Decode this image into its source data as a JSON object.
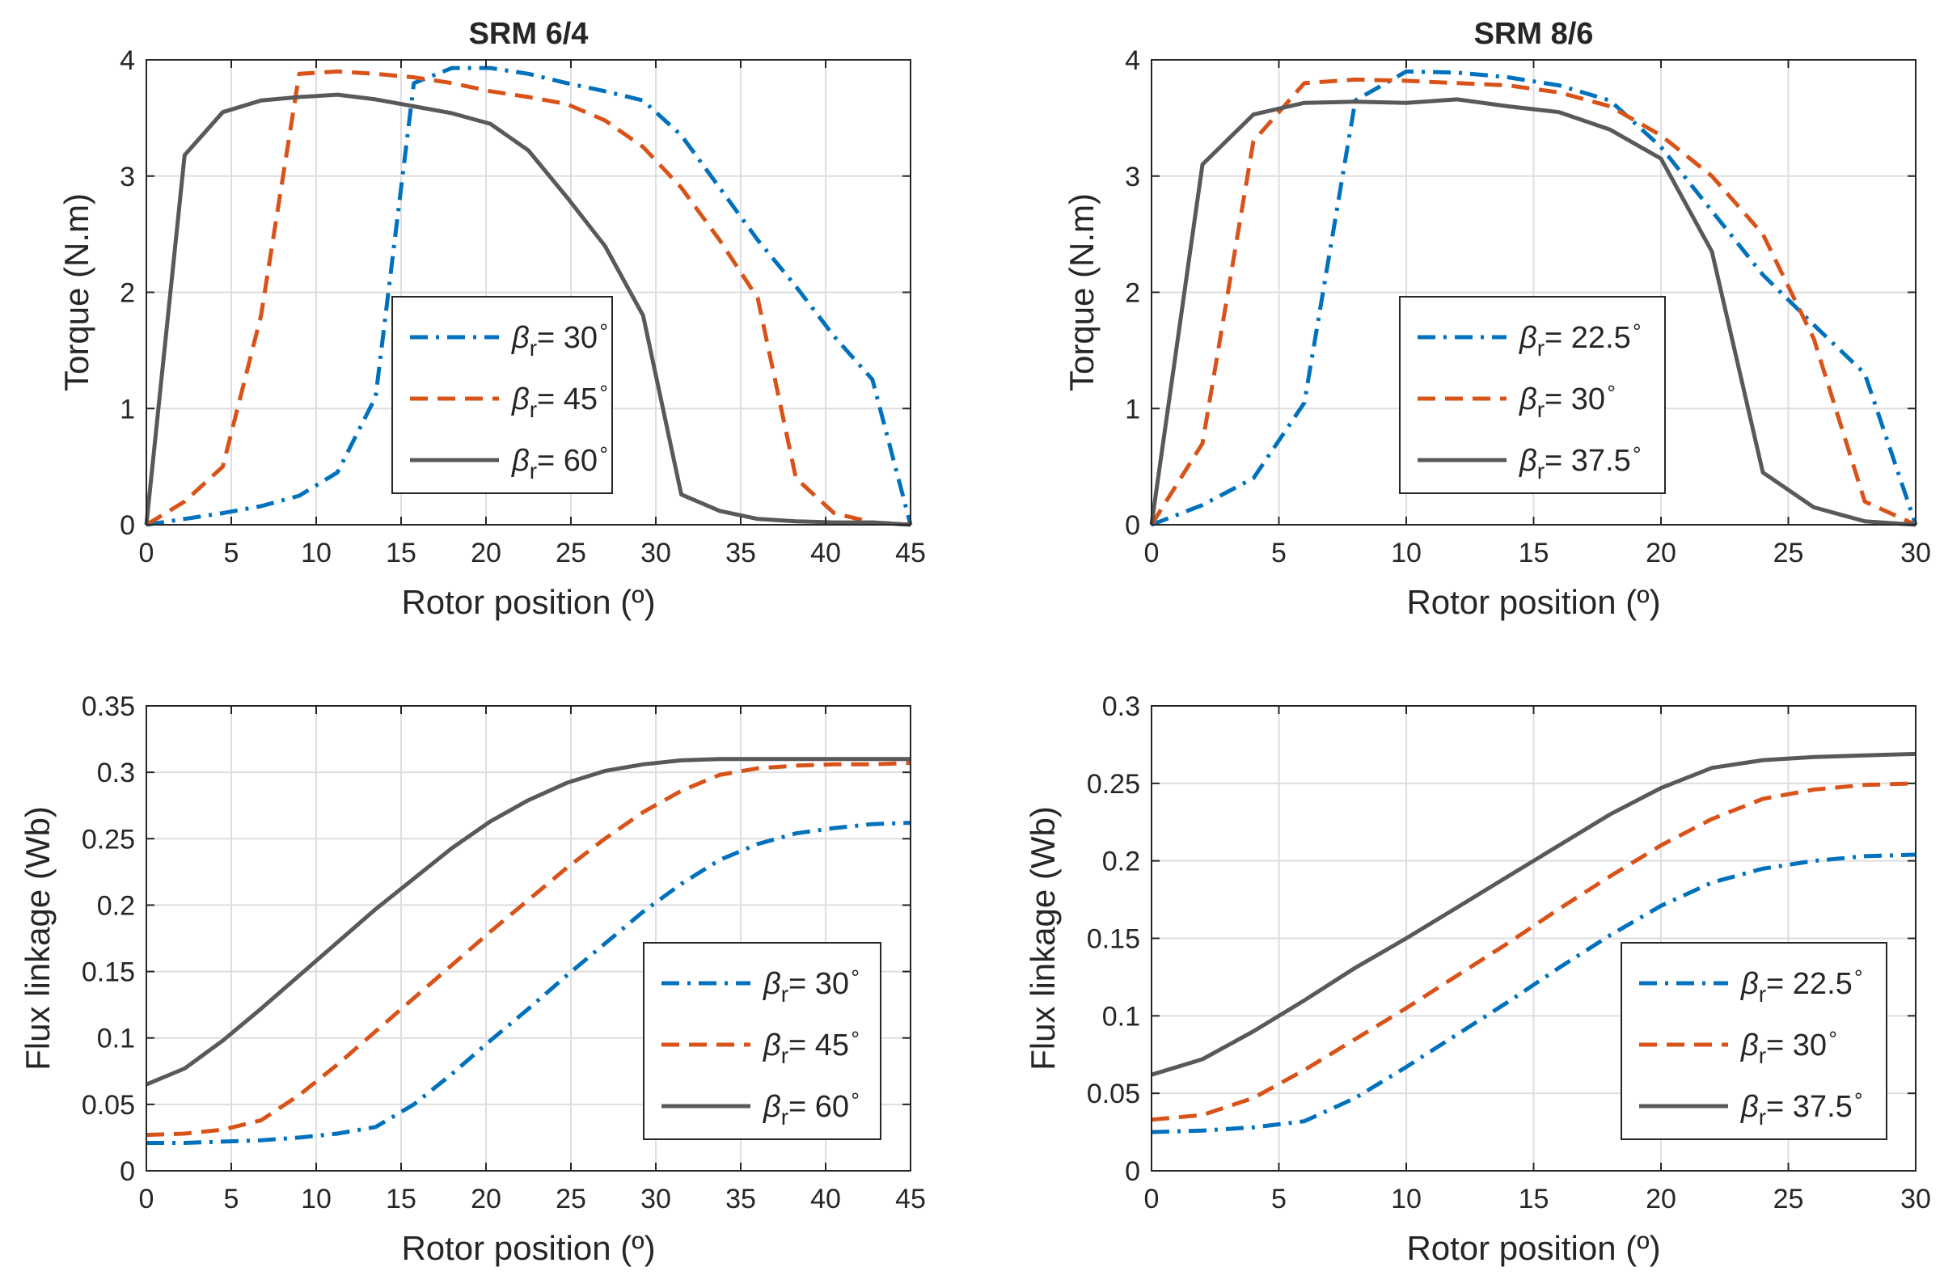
{
  "chart_data": [
    {
      "type": "line",
      "title": "SRM 6/4",
      "xlabel": "Rotor position (º)",
      "ylabel": "Torque (N.m)",
      "xlim": [
        0,
        45
      ],
      "ylim": [
        0,
        4
      ],
      "xticks": [
        0,
        5,
        10,
        15,
        20,
        25,
        30,
        35,
        40,
        45
      ],
      "yticks": [
        0,
        1,
        2,
        3,
        4
      ],
      "ytick_labels": [
        "0",
        "1",
        "2",
        "3",
        "4"
      ],
      "grid": true,
      "legend_position": "center",
      "series": [
        {
          "name": "30",
          "color": "#0072BD",
          "dash": "dashdot",
          "x": [
            0,
            2.25,
            4.5,
            6.75,
            9,
            11.25,
            13.5,
            15.75,
            18,
            20.25,
            22.5,
            24.75,
            27,
            29.25,
            31.5,
            33.75,
            36,
            38.25,
            40.5,
            42.75,
            45
          ],
          "y": [
            0,
            0.05,
            0.1,
            0.16,
            0.25,
            0.45,
            1.1,
            3.8,
            3.93,
            3.93,
            3.88,
            3.8,
            3.73,
            3.65,
            3.35,
            2.9,
            2.45,
            2.05,
            1.62,
            1.25,
            0
          ]
        },
        {
          "name": "45",
          "color": "#D95319",
          "dash": "dashed",
          "x": [
            0,
            2.25,
            4.5,
            6.75,
            9,
            11.25,
            13.5,
            15.75,
            18,
            20.25,
            22.5,
            24.75,
            27,
            29.25,
            31.5,
            33.75,
            36,
            38.25,
            40.5,
            42.75,
            45
          ],
          "y": [
            0,
            0.2,
            0.5,
            1.8,
            3.88,
            3.9,
            3.88,
            3.85,
            3.8,
            3.73,
            3.68,
            3.62,
            3.48,
            3.25,
            2.9,
            2.45,
            1.95,
            0.4,
            0.1,
            0.02,
            0
          ]
        },
        {
          "name": "60",
          "color": "#595959",
          "dash": "solid",
          "x": [
            0,
            2.25,
            4.5,
            6.75,
            9,
            11.25,
            13.5,
            15.75,
            18,
            20.25,
            22.5,
            24.75,
            27,
            29.25,
            31.5,
            33.75,
            36,
            38.25,
            40.5,
            42.75,
            45
          ],
          "y": [
            0,
            3.18,
            3.55,
            3.65,
            3.68,
            3.7,
            3.66,
            3.6,
            3.54,
            3.45,
            3.22,
            2.82,
            2.4,
            1.8,
            0.26,
            0.12,
            0.05,
            0.03,
            0.02,
            0.02,
            0
          ]
        }
      ],
      "legend_entries": [
        {
          "base": "β",
          "sub": "r",
          "eq": "= 30",
          "sup": "∘"
        },
        {
          "base": "β",
          "sub": "r",
          "eq": "= 45",
          "sup": "∘"
        },
        {
          "base": "β",
          "sub": "r",
          "eq": "= 60",
          "sup": "∘"
        }
      ]
    },
    {
      "type": "line",
      "title": "SRM 8/6",
      "xlabel": "Rotor position (º)",
      "ylabel": "Torque (N.m)",
      "xlim": [
        0,
        30
      ],
      "ylim": [
        0,
        4
      ],
      "xticks": [
        0,
        5,
        10,
        15,
        20,
        25,
        30
      ],
      "yticks": [
        0,
        1,
        2,
        3,
        4
      ],
      "ytick_labels": [
        "0",
        "1",
        "2",
        "3",
        "4"
      ],
      "grid": true,
      "legend_position": "center",
      "series": [
        {
          "name": "22.5",
          "color": "#0072BD",
          "dash": "dashdot",
          "x": [
            0,
            2,
            4,
            6,
            8,
            10,
            12,
            14,
            16,
            18,
            20,
            22,
            24,
            26,
            28,
            30
          ],
          "y": [
            0,
            0.17,
            0.4,
            1.05,
            3.65,
            3.9,
            3.89,
            3.85,
            3.78,
            3.65,
            3.25,
            2.7,
            2.15,
            1.72,
            1.3,
            0
          ]
        },
        {
          "name": "30",
          "color": "#D95319",
          "dash": "dashed",
          "x": [
            0,
            2,
            4,
            6,
            8,
            10,
            12,
            14,
            16,
            18,
            20,
            22,
            24,
            26,
            28,
            30
          ],
          "y": [
            0,
            0.7,
            3.3,
            3.8,
            3.83,
            3.82,
            3.8,
            3.78,
            3.72,
            3.6,
            3.35,
            3.0,
            2.5,
            1.6,
            0.2,
            0
          ]
        },
        {
          "name": "37.5",
          "color": "#595959",
          "dash": "solid",
          "x": [
            0,
            2,
            4,
            6,
            8,
            10,
            12,
            14,
            16,
            18,
            20,
            22,
            24,
            26,
            28,
            30
          ],
          "y": [
            0,
            3.1,
            3.53,
            3.63,
            3.64,
            3.63,
            3.66,
            3.6,
            3.55,
            3.4,
            3.15,
            2.35,
            0.45,
            0.15,
            0.03,
            0
          ]
        }
      ],
      "legend_entries": [
        {
          "base": "β",
          "sub": "r",
          "eq": "= 22.5",
          "sup": "∘"
        },
        {
          "base": "β",
          "sub": "r",
          "eq": "= 30",
          "sup": "∘"
        },
        {
          "base": "β",
          "sub": "r",
          "eq": "= 37.5",
          "sup": "∘"
        }
      ]
    },
    {
      "type": "line",
      "title": "",
      "xlabel": "Rotor position (º)",
      "ylabel": "Flux linkage (Wb)",
      "xlim": [
        0,
        45
      ],
      "ylim": [
        0,
        0.35
      ],
      "xticks": [
        0,
        5,
        10,
        15,
        20,
        25,
        30,
        35,
        40,
        45
      ],
      "yticks": [
        0,
        0.05,
        0.1,
        0.15,
        0.2,
        0.25,
        0.3,
        0.35
      ],
      "ytick_labels": [
        "0",
        "0.05",
        "0.1",
        "0.15",
        "0.2",
        "0.25",
        "0.3",
        "0.35"
      ],
      "grid": true,
      "legend_position": "bottom-right",
      "series": [
        {
          "name": "30",
          "color": "#0072BD",
          "dash": "dashdot",
          "x": [
            0,
            2.25,
            4.5,
            6.75,
            9,
            11.25,
            13.5,
            15.75,
            18,
            20.25,
            22.5,
            24.75,
            27,
            29.25,
            31.5,
            33.75,
            36,
            38.25,
            40.5,
            42.75,
            45
          ],
          "y": [
            0.021,
            0.021,
            0.022,
            0.023,
            0.025,
            0.028,
            0.033,
            0.05,
            0.073,
            0.098,
            0.122,
            0.147,
            0.171,
            0.195,
            0.216,
            0.234,
            0.246,
            0.254,
            0.258,
            0.261,
            0.262
          ]
        },
        {
          "name": "45",
          "color": "#D95319",
          "dash": "dashed",
          "x": [
            0,
            2.25,
            4.5,
            6.75,
            9,
            11.25,
            13.5,
            15.75,
            18,
            20.25,
            22.5,
            24.75,
            27,
            29.25,
            31.5,
            33.75,
            36,
            38.25,
            40.5,
            42.75,
            45
          ],
          "y": [
            0.027,
            0.028,
            0.031,
            0.038,
            0.057,
            0.08,
            0.105,
            0.13,
            0.155,
            0.18,
            0.204,
            0.228,
            0.25,
            0.27,
            0.286,
            0.298,
            0.303,
            0.305,
            0.306,
            0.306,
            0.307
          ]
        },
        {
          "name": "60",
          "color": "#595959",
          "dash": "solid",
          "x": [
            0,
            2.25,
            4.5,
            6.75,
            9,
            11.25,
            13.5,
            15.75,
            18,
            20.25,
            22.5,
            24.75,
            27,
            29.25,
            31.5,
            33.75,
            36,
            38.25,
            40.5,
            42.75,
            45
          ],
          "y": [
            0.065,
            0.077,
            0.098,
            0.122,
            0.147,
            0.172,
            0.197,
            0.22,
            0.243,
            0.263,
            0.279,
            0.292,
            0.301,
            0.306,
            0.309,
            0.31,
            0.31,
            0.31,
            0.31,
            0.31,
            0.31
          ]
        }
      ],
      "legend_entries": [
        {
          "base": "β",
          "sub": "r",
          "eq": "= 30",
          "sup": "∘"
        },
        {
          "base": "β",
          "sub": "r",
          "eq": "= 45",
          "sup": "∘"
        },
        {
          "base": "β",
          "sub": "r",
          "eq": "= 60",
          "sup": "∘"
        }
      ]
    },
    {
      "type": "line",
      "title": "",
      "xlabel": "Rotor position (º)",
      "ylabel": "Flux linkage (Wb)",
      "xlim": [
        0,
        30
      ],
      "ylim": [
        0,
        0.3
      ],
      "xticks": [
        0,
        5,
        10,
        15,
        20,
        25,
        30
      ],
      "yticks": [
        0,
        0.05,
        0.1,
        0.15,
        0.2,
        0.25,
        0.3
      ],
      "ytick_labels": [
        "0",
        "0.05",
        "0.1",
        "0.15",
        "0.2",
        "0.25",
        "0.3"
      ],
      "grid": true,
      "legend_position": "bottom-right",
      "series": [
        {
          "name": "22.5",
          "color": "#0072BD",
          "dash": "dashdot",
          "x": [
            0,
            2,
            4,
            6,
            8,
            10,
            12,
            14,
            16,
            18,
            20,
            22,
            24,
            26,
            28,
            30
          ],
          "y": [
            0.025,
            0.026,
            0.028,
            0.032,
            0.047,
            0.067,
            0.088,
            0.109,
            0.131,
            0.152,
            0.171,
            0.186,
            0.195,
            0.2,
            0.203,
            0.204
          ]
        },
        {
          "name": "30",
          "color": "#D95319",
          "dash": "dashed",
          "x": [
            0,
            2,
            4,
            6,
            8,
            10,
            12,
            14,
            16,
            18,
            20,
            22,
            24,
            26,
            28,
            30
          ],
          "y": [
            0.033,
            0.036,
            0.047,
            0.065,
            0.085,
            0.105,
            0.126,
            0.147,
            0.169,
            0.19,
            0.21,
            0.227,
            0.24,
            0.246,
            0.249,
            0.25
          ]
        },
        {
          "name": "37.5",
          "color": "#595959",
          "dash": "solid",
          "x": [
            0,
            2,
            4,
            6,
            8,
            10,
            12,
            14,
            16,
            18,
            20,
            22,
            24,
            26,
            28,
            30
          ],
          "y": [
            0.062,
            0.072,
            0.09,
            0.11,
            0.131,
            0.15,
            0.17,
            0.19,
            0.21,
            0.23,
            0.247,
            0.26,
            0.265,
            0.267,
            0.268,
            0.269
          ]
        }
      ],
      "legend_entries": [
        {
          "base": "β",
          "sub": "r",
          "eq": "= 22.5",
          "sup": "∘"
        },
        {
          "base": "β",
          "sub": "r",
          "eq": "= 30",
          "sup": "∘"
        },
        {
          "base": "β",
          "sub": "r",
          "eq": "= 37.5",
          "sup": "∘"
        }
      ]
    }
  ]
}
